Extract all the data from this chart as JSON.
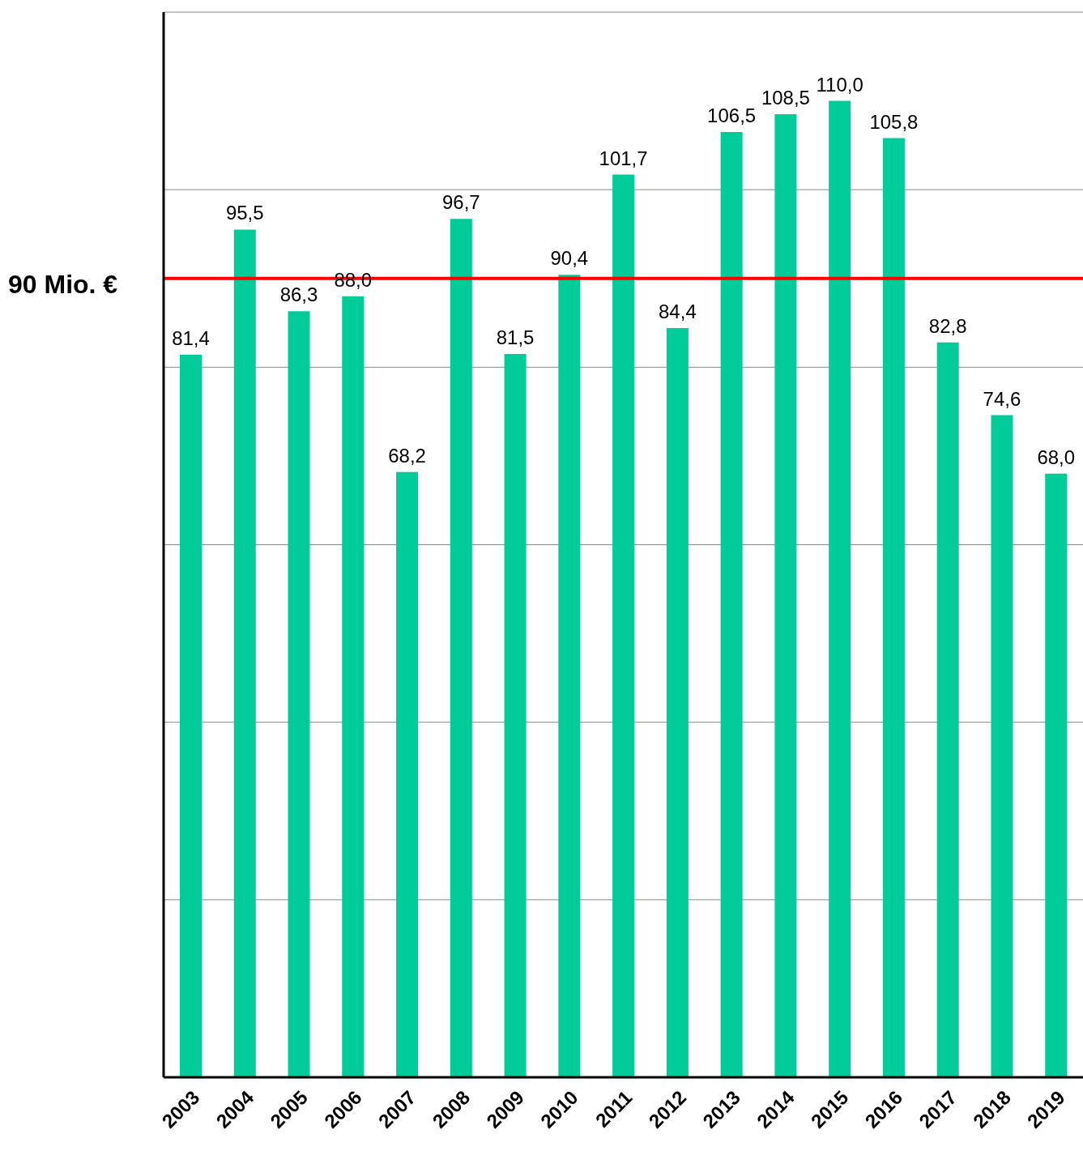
{
  "chart_data": {
    "type": "bar",
    "categories": [
      "2003",
      "2004",
      "2005",
      "2006",
      "2007",
      "2008",
      "2009",
      "2010",
      "2011",
      "2012",
      "2013",
      "2014",
      "2015",
      "2016",
      "2017",
      "2018",
      "2019"
    ],
    "values": [
      81.4,
      95.5,
      86.3,
      88.0,
      68.2,
      96.7,
      81.5,
      90.4,
      101.7,
      84.4,
      106.5,
      108.5,
      110.0,
      105.8,
      82.8,
      74.6,
      68.0
    ],
    "value_labels": [
      "81,4",
      "95,5",
      "86,3",
      "88,0",
      "68,2",
      "96,7",
      "81,5",
      "90,4",
      "101,7",
      "84,4",
      "106,5",
      "108,5",
      "110,0",
      "105,8",
      "82,8",
      "74,6",
      "68,0"
    ],
    "color": "#00cc99",
    "ylim": [
      0,
      120
    ],
    "yticks": [
      {
        "value": 0,
        "label": null
      },
      {
        "value": 20,
        "label": null
      },
      {
        "value": 40,
        "label": null
      },
      {
        "value": 60,
        "label": null
      },
      {
        "value": 80,
        "label": null
      },
      {
        "value": 100,
        "label": null
      },
      {
        "value": 120,
        "label": null
      }
    ],
    "grid": "y",
    "tick_labels": "x",
    "ref_lines": [
      {
        "axis": "y",
        "value": 90,
        "label": "90 Mio. €",
        "color": "#ff0000"
      }
    ]
  }
}
